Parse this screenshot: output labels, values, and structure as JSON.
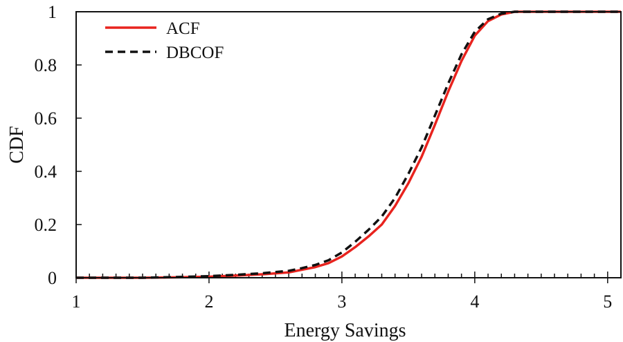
{
  "chart_data": {
    "type": "line",
    "title": "",
    "xlabel": "Energy Savings",
    "ylabel": "CDF",
    "xlim": [
      1,
      5.1
    ],
    "ylim": [
      0,
      1
    ],
    "x_ticks": [
      1,
      2,
      3,
      4,
      5
    ],
    "x_tick_labels": [
      "1",
      "2",
      "3",
      "4",
      "5"
    ],
    "x_minor_step": 0.1,
    "y_ticks": [
      0,
      0.2,
      0.4,
      0.6,
      0.8,
      1
    ],
    "y_tick_labels": [
      "0",
      "0.2",
      "0.4",
      "0.6",
      "0.8",
      "1"
    ],
    "legend_position": "top-left",
    "series": [
      {
        "name": "ACF",
        "color": "#e8231e",
        "style": "solid",
        "x": [
          1.0,
          1.5,
          1.8,
          2.0,
          2.2,
          2.4,
          2.6,
          2.7,
          2.8,
          2.9,
          3.0,
          3.1,
          3.2,
          3.3,
          3.4,
          3.5,
          3.6,
          3.7,
          3.8,
          3.9,
          4.0,
          4.1,
          4.2,
          4.3,
          5.1
        ],
        "y": [
          0.0,
          0.0,
          0.002,
          0.004,
          0.008,
          0.013,
          0.02,
          0.03,
          0.04,
          0.055,
          0.08,
          0.115,
          0.155,
          0.2,
          0.27,
          0.355,
          0.455,
          0.575,
          0.7,
          0.815,
          0.91,
          0.965,
          0.99,
          1.0,
          1.0
        ]
      },
      {
        "name": "DBCOF",
        "color": "#111111",
        "style": "dashed",
        "x": [
          1.0,
          1.5,
          1.8,
          2.0,
          2.2,
          2.4,
          2.6,
          2.7,
          2.8,
          2.9,
          3.0,
          3.1,
          3.2,
          3.3,
          3.4,
          3.5,
          3.6,
          3.7,
          3.8,
          3.9,
          4.0,
          4.1,
          4.2,
          4.3,
          5.1
        ],
        "y": [
          0.0,
          0.0,
          0.003,
          0.006,
          0.011,
          0.017,
          0.026,
          0.036,
          0.048,
          0.066,
          0.095,
          0.135,
          0.18,
          0.23,
          0.3,
          0.39,
          0.49,
          0.61,
          0.73,
          0.84,
          0.925,
          0.972,
          0.993,
          1.0,
          1.0
        ]
      }
    ]
  }
}
